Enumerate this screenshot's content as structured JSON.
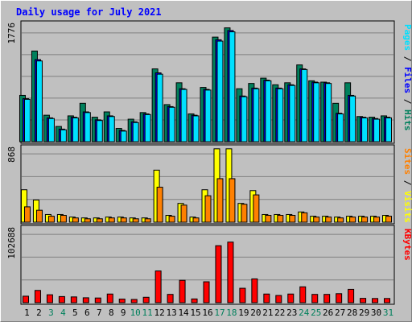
{
  "title": "Daily usage for July 2021",
  "colors": {
    "background": "#c0c0c0",
    "hits": "#00805c",
    "files": "#00c0ff",
    "pages": "#00e0ff",
    "visits": "#ffff00",
    "sites": "#ff8000",
    "kbytes": "#ff0000",
    "weekday_label": "#000000",
    "weekend_label": "#00805c"
  },
  "chart_data": [
    {
      "type": "bar",
      "title": "Daily usage for July 2021",
      "panel": "top",
      "ylabel_parts": [
        {
          "text": "Pages",
          "color": "#00e0ff"
        },
        {
          "text": " / ",
          "color": "#000000"
        },
        {
          "text": "Files",
          "color": "#0000ff"
        },
        {
          "text": " / ",
          "color": "#000000"
        },
        {
          "text": "Hits",
          "color": "#00805c"
        }
      ],
      "ymax": 1776,
      "ymax_label": "1776",
      "grid": true,
      "categories": [
        "1",
        "2",
        "3",
        "4",
        "5",
        "6",
        "7",
        "8",
        "9",
        "10",
        "11",
        "12",
        "13",
        "14",
        "15",
        "16",
        "17",
        "18",
        "19",
        "20",
        "21",
        "22",
        "23",
        "24",
        "25",
        "26",
        "27",
        "28",
        "29",
        "30",
        "31"
      ],
      "series": [
        {
          "name": "Hits",
          "color": "#00805c",
          "values": [
            700,
            1370,
            400,
            230,
            390,
            580,
            370,
            450,
            200,
            340,
            440,
            1100,
            560,
            890,
            420,
            820,
            1580,
            1720,
            800,
            880,
            960,
            860,
            890,
            1160,
            920,
            900,
            580,
            890,
            380,
            370,
            390
          ]
        },
        {
          "name": "Files",
          "color": "#0000ff",
          "values": [
            650,
            1240,
            360,
            190,
            370,
            450,
            330,
            390,
            170,
            300,
            420,
            1040,
            530,
            800,
            400,
            790,
            1540,
            1680,
            690,
            810,
            930,
            810,
            860,
            1100,
            900,
            890,
            430,
            700,
            370,
            350,
            370
          ]
        },
        {
          "name": "Pages",
          "color": "#00e0ff",
          "values": [
            640,
            1220,
            350,
            180,
            360,
            440,
            320,
            380,
            160,
            290,
            410,
            1020,
            520,
            790,
            390,
            780,
            1520,
            1660,
            680,
            800,
            920,
            800,
            850,
            1090,
            890,
            880,
            420,
            690,
            360,
            340,
            360
          ]
        }
      ]
    },
    {
      "type": "bar",
      "panel": "middle",
      "ylabel_parts": [
        {
          "text": "Sites",
          "color": "#ff8000"
        },
        {
          "text": " / ",
          "color": "#000000"
        },
        {
          "text": "Visits",
          "color": "#ffff00"
        }
      ],
      "ymax": 868,
      "ymax_label": "868",
      "grid": true,
      "categories": [
        "1",
        "2",
        "3",
        "4",
        "5",
        "6",
        "7",
        "8",
        "9",
        "10",
        "11",
        "12",
        "13",
        "14",
        "15",
        "16",
        "17",
        "18",
        "19",
        "20",
        "21",
        "22",
        "23",
        "24",
        "25",
        "26",
        "27",
        "28",
        "29",
        "30",
        "31"
      ],
      "series": [
        {
          "name": "Visits",
          "color": "#ffff00",
          "values": [
            380,
            260,
            90,
            90,
            60,
            50,
            50,
            60,
            60,
            50,
            50,
            610,
            80,
            220,
            60,
            380,
            860,
            860,
            220,
            370,
            90,
            90,
            90,
            120,
            70,
            70,
            60,
            70,
            70,
            70,
            80
          ]
        },
        {
          "name": "Sites",
          "color": "#ff8000",
          "values": [
            180,
            140,
            70,
            80,
            50,
            40,
            40,
            50,
            50,
            40,
            40,
            410,
            70,
            200,
            50,
            310,
            510,
            510,
            210,
            320,
            80,
            80,
            80,
            110,
            60,
            60,
            50,
            60,
            60,
            60,
            70
          ]
        }
      ]
    },
    {
      "type": "bar",
      "panel": "bottom",
      "ylabel_parts": [
        {
          "text": "KBytes",
          "color": "#ff0000"
        }
      ],
      "ymax": 102688,
      "ymax_label": "102688",
      "grid": true,
      "categories": [
        "1",
        "2",
        "3",
        "4",
        "5",
        "6",
        "7",
        "8",
        "9",
        "10",
        "11",
        "12",
        "13",
        "14",
        "15",
        "16",
        "17",
        "18",
        "19",
        "20",
        "21",
        "22",
        "23",
        "24",
        "25",
        "26",
        "27",
        "28",
        "29",
        "30",
        "31"
      ],
      "series": [
        {
          "name": "KBytes",
          "color": "#ff0000",
          "values": [
            9000,
            17000,
            11000,
            8500,
            8000,
            6800,
            6500,
            12000,
            5000,
            4500,
            7500,
            44000,
            11500,
            31000,
            5200,
            29000,
            79000,
            84000,
            20000,
            33000,
            12000,
            10000,
            12000,
            22000,
            11500,
            11500,
            12500,
            18500,
            6000,
            5800,
            5800
          ]
        }
      ]
    }
  ],
  "weekend_days": [
    3,
    4,
    10,
    11,
    17,
    18,
    24,
    25,
    31
  ]
}
